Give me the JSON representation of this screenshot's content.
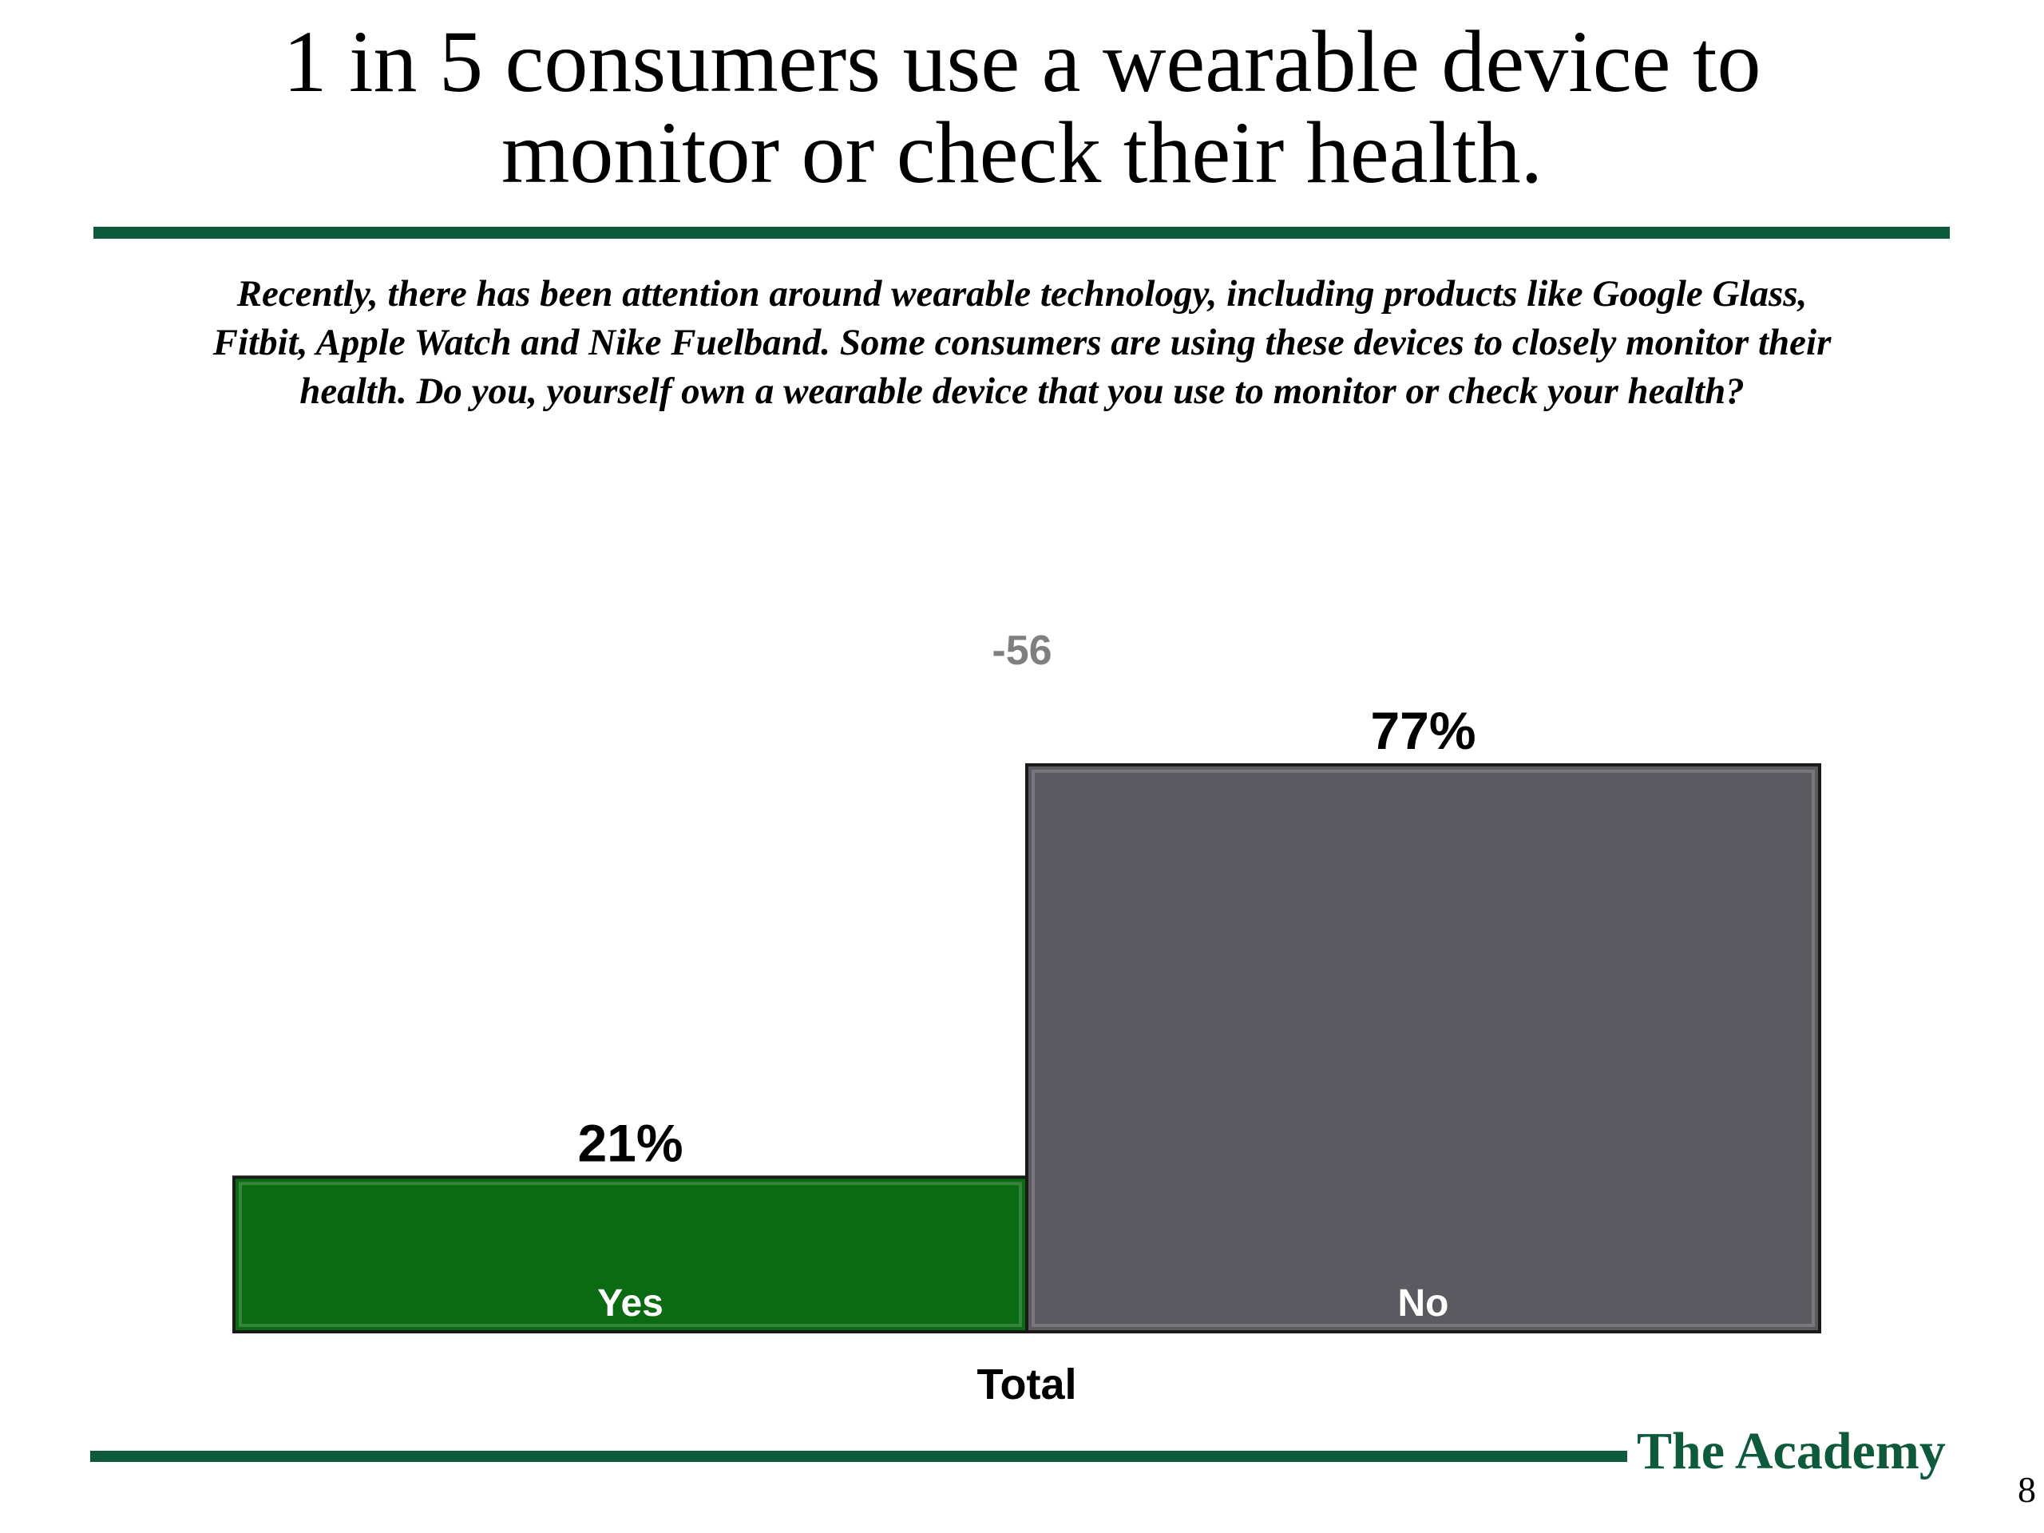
{
  "slide": {
    "title_line1": "1 in 5 consumers use a wearable device to",
    "title_line2": "monitor or check their health.",
    "question_line1": "Recently, there has been attention around wearable technology, including products like Google Glass,",
    "question_line2": "Fitbit, Apple Watch and Nike Fuelband. Some consumers are using these devices to closely monitor their",
    "question_line3": "health. Do you, yourself own a wearable device that you use to monitor or check your health?",
    "brand": "The Academy",
    "page_number": "8",
    "colors": {
      "rule": "#0e5a3c",
      "brand": "#0e5a3c"
    }
  },
  "chart_data": {
    "type": "bar",
    "categories": [
      "Yes",
      "No"
    ],
    "values": [
      21,
      77
    ],
    "value_labels": [
      "21%",
      "77%"
    ],
    "group_label": "Total",
    "net_label": "-56",
    "colors": [
      "#0b6b12",
      "#5a5a60"
    ],
    "ylim": [
      0,
      100
    ],
    "grid": false
  }
}
